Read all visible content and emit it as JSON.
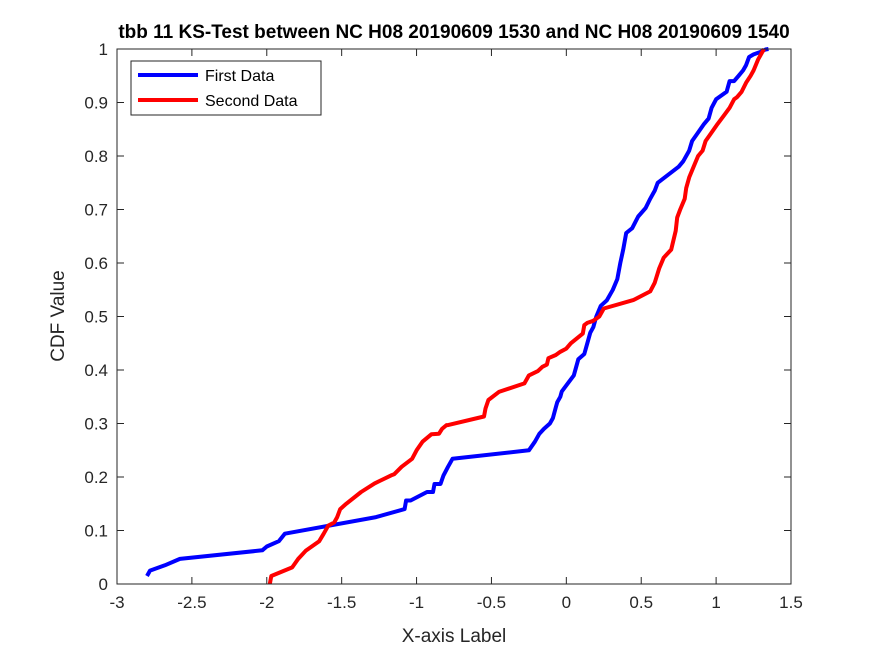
{
  "chart_data": {
    "type": "line",
    "title": "tbb 11 KS-Test between NC H08 20190609 1530 and NC H08 20190609 1540",
    "xlabel": "X-axis Label",
    "ylabel": "CDF Value",
    "xlim": [
      -3,
      1.5
    ],
    "ylim": [
      0,
      1
    ],
    "xticks": [
      -3,
      -2.5,
      -2,
      -1.5,
      -1,
      -0.5,
      0,
      0.5,
      1,
      1.5
    ],
    "xtick_labels": [
      "-3",
      "-2.5",
      "-2",
      "-1.5",
      "-1",
      "-0.5",
      "0",
      "0.5",
      "1",
      "1.5"
    ],
    "yticks": [
      0,
      0.1,
      0.2,
      0.3,
      0.4,
      0.5,
      0.6,
      0.7,
      0.8,
      0.9,
      1
    ],
    "ytick_labels": [
      "0",
      "0.1",
      "0.2",
      "0.3",
      "0.4",
      "0.5",
      "0.6",
      "0.7",
      "0.8",
      "0.9",
      "1"
    ],
    "grid": false,
    "legend_position": "top-left",
    "series": [
      {
        "name": "First Data",
        "color": "#0000ff",
        "x": [
          -2.8,
          -2.78,
          -2.68,
          -2.58,
          -2.03,
          -2.0,
          -1.92,
          -1.88,
          -1.27,
          -1.08,
          -1.07,
          -1.04,
          -0.93,
          -0.89,
          -0.88,
          -0.84,
          -0.82,
          -0.79,
          -0.76,
          -0.25,
          -0.21,
          -0.18,
          -0.15,
          -0.11,
          -0.09,
          -0.07,
          -0.06,
          -0.04,
          -0.03,
          0.05,
          0.08,
          0.12,
          0.14,
          0.16,
          0.18,
          0.2,
          0.23,
          0.27,
          0.31,
          0.34,
          0.36,
          0.38,
          0.4,
          0.44,
          0.48,
          0.53,
          0.56,
          0.58,
          0.59,
          0.61,
          0.75,
          0.78,
          0.82,
          0.84,
          0.87,
          0.92,
          0.95,
          0.97,
          1.0,
          1.07,
          1.09,
          1.12,
          1.15,
          1.18,
          1.2,
          1.22,
          1.25,
          1.3,
          1.33,
          1.35
        ],
        "y": [
          0.015,
          0.025,
          0.035,
          0.047,
          0.063,
          0.07,
          0.08,
          0.094,
          0.125,
          0.14,
          0.156,
          0.156,
          0.172,
          0.172,
          0.187,
          0.187,
          0.203,
          0.219,
          0.234,
          0.25,
          0.266,
          0.281,
          0.29,
          0.3,
          0.31,
          0.33,
          0.34,
          0.35,
          0.36,
          0.39,
          0.42,
          0.43,
          0.45,
          0.47,
          0.48,
          0.5,
          0.52,
          0.53,
          0.55,
          0.57,
          0.6,
          0.625,
          0.656,
          0.665,
          0.687,
          0.703,
          0.72,
          0.73,
          0.735,
          0.75,
          0.78,
          0.79,
          0.81,
          0.828,
          0.84,
          0.86,
          0.87,
          0.89,
          0.906,
          0.92,
          0.94,
          0.94,
          0.95,
          0.96,
          0.97,
          0.985,
          0.99,
          0.995,
          0.999,
          1.0
        ]
      },
      {
        "name": "Second Data",
        "color": "#ff0000",
        "x": [
          -1.98,
          -1.97,
          -1.83,
          -1.79,
          -1.74,
          -1.65,
          -1.62,
          -1.59,
          -1.55,
          -1.53,
          -1.51,
          -1.47,
          -1.37,
          -1.28,
          -1.17,
          -1.15,
          -1.1,
          -1.03,
          -1.0,
          -0.96,
          -0.9,
          -0.85,
          -0.83,
          -0.8,
          -0.79,
          -0.55,
          -0.54,
          -0.52,
          -0.45,
          -0.28,
          -0.25,
          -0.19,
          -0.16,
          -0.13,
          -0.12,
          -0.07,
          -0.04,
          0.0,
          0.03,
          0.11,
          0.12,
          0.14,
          0.18,
          0.22,
          0.25,
          0.45,
          0.56,
          0.59,
          0.62,
          0.65,
          0.7,
          0.73,
          0.74,
          0.76,
          0.79,
          0.8,
          0.82,
          0.85,
          0.88,
          0.91,
          0.93,
          0.96,
          1.01,
          1.05,
          1.09,
          1.12,
          1.14,
          1.17,
          1.2,
          1.23,
          1.25,
          1.28,
          1.32
        ],
        "y": [
          0.0,
          0.015,
          0.031,
          0.047,
          0.062,
          0.08,
          0.094,
          0.109,
          0.115,
          0.125,
          0.14,
          0.15,
          0.172,
          0.188,
          0.203,
          0.205,
          0.219,
          0.234,
          0.25,
          0.266,
          0.28,
          0.281,
          0.29,
          0.297,
          0.297,
          0.313,
          0.328,
          0.344,
          0.359,
          0.375,
          0.39,
          0.398,
          0.406,
          0.41,
          0.422,
          0.428,
          0.434,
          0.44,
          0.45,
          0.468,
          0.484,
          0.488,
          0.492,
          0.5,
          0.515,
          0.531,
          0.547,
          0.563,
          0.59,
          0.61,
          0.625,
          0.66,
          0.685,
          0.7,
          0.72,
          0.74,
          0.76,
          0.78,
          0.8,
          0.81,
          0.828,
          0.84,
          0.86,
          0.875,
          0.89,
          0.906,
          0.91,
          0.92,
          0.937,
          0.95,
          0.96,
          0.98,
          1.0
        ]
      }
    ]
  }
}
